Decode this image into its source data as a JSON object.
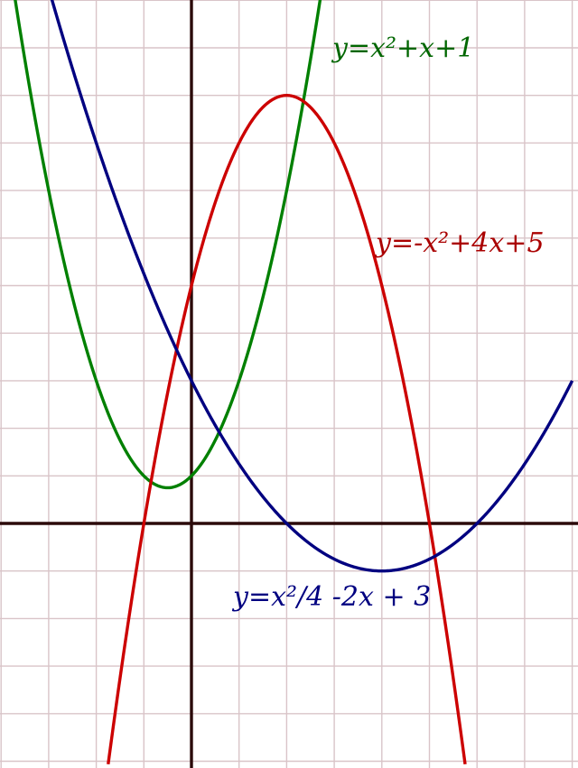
{
  "chart_data": {
    "type": "line",
    "title": "",
    "xlabel": "",
    "ylabel": "",
    "xlim": [
      -4,
      8
    ],
    "ylim": [
      -5,
      11
    ],
    "grid": true,
    "colors": {
      "background": "#ffffff",
      "grid": "#d9c4c8",
      "axes": "#2b0a0a"
    },
    "series": [
      {
        "name": "y=x²+x+1",
        "color": "#008000",
        "formula": "x^2 + x + 1",
        "x": [
          -3.75,
          -3,
          -2,
          -1,
          -0.5,
          0,
          1,
          2,
          2.71
        ],
        "y": [
          11.3,
          7,
          3,
          1,
          0.75,
          1,
          3,
          7,
          11.1
        ]
      },
      {
        "name": "y=-x²+4x+5",
        "color": "#cc0000",
        "formula": "-x^2 + 4x + 5",
        "x": [
          -1.75,
          -1,
          0,
          1,
          2,
          3,
          4,
          5,
          5.75
        ],
        "y": [
          -5.06,
          0,
          5,
          8,
          9,
          8,
          5,
          0,
          -5.06
        ]
      },
      {
        "name": "y=x²/4 -2x + 3",
        "color": "#000080",
        "formula": "x^2/4 - 2x + 3",
        "x": [
          -3,
          -2,
          0,
          2,
          4,
          6,
          8
        ],
        "y": [
          11.25,
          8,
          3,
          0,
          -1,
          0,
          3
        ]
      }
    ]
  }
}
